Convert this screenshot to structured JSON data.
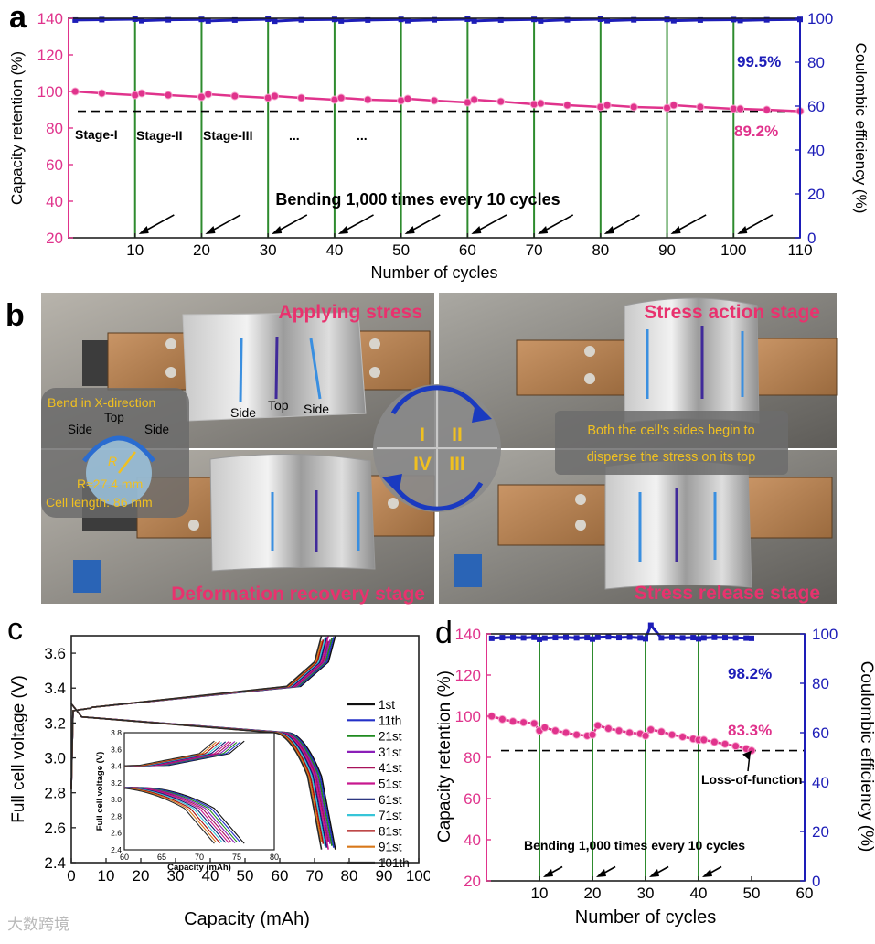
{
  "figure": {
    "panel_letters": [
      "a",
      "b",
      "c",
      "d"
    ],
    "watermark": "大数跨境"
  },
  "chart_data": [
    {
      "id": "a",
      "type": "scatter",
      "xlabel": "Number of cycles",
      "ylabel": "Capacity retention (%)",
      "y2label": "Coulombic efficiency (%)",
      "xlim": [
        0,
        110
      ],
      "ylim": [
        20,
        140
      ],
      "y2lim": [
        0,
        100
      ],
      "xticks": [
        10,
        20,
        30,
        40,
        50,
        60,
        70,
        80,
        90,
        100,
        110
      ],
      "yticks": [
        20,
        40,
        60,
        80,
        100,
        120,
        140
      ],
      "y2ticks": [
        0,
        20,
        40,
        60,
        80,
        100
      ],
      "bending_cycles": [
        10,
        20,
        30,
        40,
        50,
        60,
        70,
        80,
        90,
        100
      ],
      "threshold": 89.2,
      "series": [
        {
          "name": "Capacity retention",
          "axis": "left",
          "color": "#e0338c",
          "x": [
            1,
            5,
            10,
            11,
            15,
            20,
            21,
            25,
            30,
            31,
            35,
            40,
            41,
            45,
            50,
            51,
            55,
            60,
            61,
            65,
            70,
            71,
            75,
            80,
            81,
            85,
            90,
            91,
            95,
            100,
            101,
            105,
            110
          ],
          "values": [
            100,
            99,
            98,
            99,
            98,
            97,
            98.5,
            97.5,
            96.5,
            97.5,
            96.5,
            95.5,
            96.5,
            95.5,
            95,
            96,
            95,
            94,
            95.5,
            94.5,
            93,
            93.5,
            92.5,
            91.5,
            92.5,
            91.5,
            91,
            92.5,
            91.5,
            90.5,
            90.5,
            90,
            89.2
          ]
        },
        {
          "name": "Coulombic efficiency",
          "axis": "right",
          "color": "#1d1db8",
          "x": [
            1,
            5,
            10,
            11,
            15,
            20,
            21,
            25,
            30,
            31,
            35,
            40,
            41,
            45,
            50,
            51,
            55,
            60,
            61,
            65,
            70,
            71,
            75,
            80,
            81,
            85,
            90,
            91,
            95,
            100,
            101,
            105,
            110
          ],
          "values": [
            99.2,
            99.4,
            99.6,
            98.9,
            99.3,
            99.5,
            98.8,
            99.2,
            99.6,
            98.7,
            99.3,
            99.5,
            98.8,
            99.2,
            99.5,
            98.9,
            99.3,
            99.6,
            98.8,
            99.2,
            99.5,
            98.8,
            99.3,
            99.6,
            98.9,
            99.3,
            99.5,
            98.9,
            99.2,
            99.4,
            99.0,
            99.3,
            99.5
          ]
        }
      ],
      "annotations": {
        "ce_value": "99.5%",
        "cr_value": "89.2%",
        "stages": [
          "Stage-I",
          "Stage-II",
          "Stage-III",
          "...",
          "..."
        ],
        "bending_text": "Bending 1,000 times every 10 cycles"
      }
    },
    {
      "id": "c",
      "type": "line",
      "xlabel": "Capacity (mAh)",
      "ylabel": "Full cell voltage (V)",
      "xlim": [
        0,
        100
      ],
      "ylim": [
        2.4,
        3.7
      ],
      "xticks": [
        0,
        10,
        20,
        30,
        40,
        50,
        60,
        70,
        80,
        90,
        100
      ],
      "yticks": [
        2.4,
        2.6,
        2.8,
        3.0,
        3.2,
        3.4,
        3.6
      ],
      "legend": [
        "1st",
        "11th",
        "21st",
        "31st",
        "41st",
        "51st",
        "61st",
        "71st",
        "81st",
        "91st",
        "101th"
      ],
      "colors": [
        "#111111",
        "#2430c8",
        "#1f8a1f",
        "#8b1fb8",
        "#a8125a",
        "#c8188f",
        "#101c70",
        "#37c5d8",
        "#a80c0c",
        "#d8781a",
        "#2a2a2a"
      ],
      "end_capacity": [
        76,
        75.6,
        75.2,
        74.8,
        74.4,
        74,
        73.6,
        73.2,
        72.8,
        72.4,
        72
      ],
      "inset": {
        "xlabel": "Capacity (mAh)",
        "ylabel": "Full cell voltage (V)",
        "xlim": [
          60,
          80
        ],
        "ylim": [
          2.4,
          3.8
        ],
        "xticks": [
          60,
          65,
          70,
          75,
          80
        ],
        "yticks": [
          2.4,
          2.6,
          2.8,
          3.0,
          3.2,
          3.4,
          3.6,
          3.8
        ]
      }
    },
    {
      "id": "d",
      "type": "scatter",
      "xlabel": "Number of cycles",
      "ylabel": "Capacity retention (%)",
      "y2label": "Coulombic efficiency (%)",
      "xlim": [
        0,
        60
      ],
      "ylim": [
        20,
        140
      ],
      "y2lim": [
        0,
        100
      ],
      "xticks": [
        10,
        20,
        30,
        40,
        50,
        60
      ],
      "yticks": [
        20,
        40,
        60,
        80,
        100,
        120,
        140
      ],
      "y2ticks": [
        0,
        20,
        40,
        60,
        80,
        100
      ],
      "bending_cycles": [
        10,
        20,
        30,
        40
      ],
      "threshold": 83.3,
      "series": [
        {
          "name": "Capacity retention",
          "axis": "left",
          "color": "#e0338c",
          "x": [
            1,
            3,
            5,
            7,
            9,
            10,
            11,
            13,
            15,
            17,
            19,
            20,
            21,
            23,
            25,
            27,
            29,
            30,
            31,
            33,
            35,
            37,
            39,
            40,
            41,
            43,
            45,
            47,
            49,
            50
          ],
          "values": [
            100,
            98.5,
            97.5,
            97,
            96.5,
            93,
            94.5,
            93,
            92,
            91,
            90.5,
            91,
            95.5,
            94,
            93,
            92,
            91.5,
            90.5,
            93.5,
            92.5,
            91,
            90,
            89,
            88.5,
            88.5,
            87.5,
            86.5,
            85.5,
            84.2,
            83.3
          ]
        },
        {
          "name": "Coulombic efficiency",
          "axis": "right",
          "color": "#1d1db8",
          "x": [
            1,
            3,
            5,
            7,
            9,
            10,
            11,
            13,
            15,
            17,
            19,
            20,
            21,
            23,
            25,
            27,
            29,
            30,
            31,
            33,
            35,
            37,
            39,
            40,
            41,
            43,
            45,
            47,
            49,
            50
          ],
          "values": [
            98.2,
            98.5,
            98.6,
            98.4,
            98.6,
            97.8,
            98.3,
            98.5,
            98.6,
            98.4,
            98.5,
            97.9,
            98.6,
            98.8,
            98.5,
            98.7,
            98.4,
            98.0,
            103.5,
            98.4,
            98.6,
            98.4,
            98.5,
            98.0,
            98.4,
            98.6,
            98.5,
            98.4,
            98.3,
            98.2
          ]
        }
      ],
      "annotations": {
        "ce_value": "98.2%",
        "cr_value": "83.3%",
        "loss_text": "Loss-of-function",
        "bending_text": "Bending 1,000 times every 10 cycles"
      }
    }
  ],
  "photo": {
    "labels": {
      "applying": "Applying stress",
      "action": "Stress action stage",
      "recovery": "Deformation recovery stage",
      "release": "Stress release stage"
    },
    "marks": {
      "side_left": "Side",
      "top": "Top",
      "side_right": "Side"
    },
    "bend_info": {
      "direction": "Bend in X-direction",
      "side_left": "Side",
      "top": "Top",
      "side_right": "Side",
      "r_symbol": "R",
      "radius": "R≈27.4 mm",
      "length": "Cell length: 86 mm"
    },
    "disperse_text": [
      "Both the cell's sides  begin to",
      "disperse the stress on its top"
    ],
    "stages": [
      "I",
      "II",
      "III",
      "IV"
    ]
  }
}
